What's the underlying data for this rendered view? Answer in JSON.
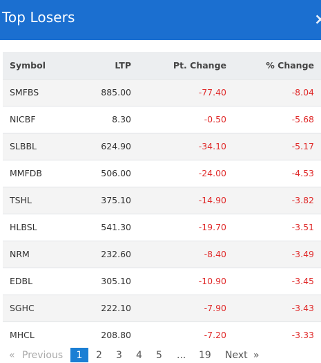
{
  "header": {
    "title": "Top Losers",
    "close": "×"
  },
  "table": {
    "columns": [
      "Symbol",
      "LTP",
      "Pt. Change",
      "% Change"
    ],
    "rows": [
      {
        "symbol": "SMFBS",
        "ltp": "885.00",
        "pt_change": "-77.40",
        "pct_change": "-8.04"
      },
      {
        "symbol": "NICBF",
        "ltp": "8.30",
        "pt_change": "-0.50",
        "pct_change": "-5.68"
      },
      {
        "symbol": "SLBBL",
        "ltp": "624.90",
        "pt_change": "-34.10",
        "pct_change": "-5.17"
      },
      {
        "symbol": "MMFDB",
        "ltp": "506.00",
        "pt_change": "-24.00",
        "pct_change": "-4.53"
      },
      {
        "symbol": "TSHL",
        "ltp": "375.10",
        "pt_change": "-14.90",
        "pct_change": "-3.82"
      },
      {
        "symbol": "HLBSL",
        "ltp": "541.30",
        "pt_change": "-19.70",
        "pct_change": "-3.51"
      },
      {
        "symbol": "NRM",
        "ltp": "232.60",
        "pt_change": "-8.40",
        "pct_change": "-3.49"
      },
      {
        "symbol": "EDBL",
        "ltp": "305.10",
        "pt_change": "-10.90",
        "pct_change": "-3.45"
      },
      {
        "symbol": "SGHC",
        "ltp": "222.10",
        "pt_change": "-7.90",
        "pct_change": "-3.43"
      },
      {
        "symbol": "MHCL",
        "ltp": "208.80",
        "pt_change": "-7.20",
        "pct_change": "-3.33"
      }
    ]
  },
  "pagination": {
    "first": "«",
    "previous": "Previous",
    "pages": [
      "1",
      "2",
      "3",
      "4",
      "5"
    ],
    "active_page": "1",
    "ellipsis": "...",
    "last_page": "19",
    "next": "Next",
    "last": "»"
  },
  "colors": {
    "header_bg": "#1b6fd0",
    "negative": "#e02b2b",
    "active_page_bg": "#1b7fd4"
  }
}
